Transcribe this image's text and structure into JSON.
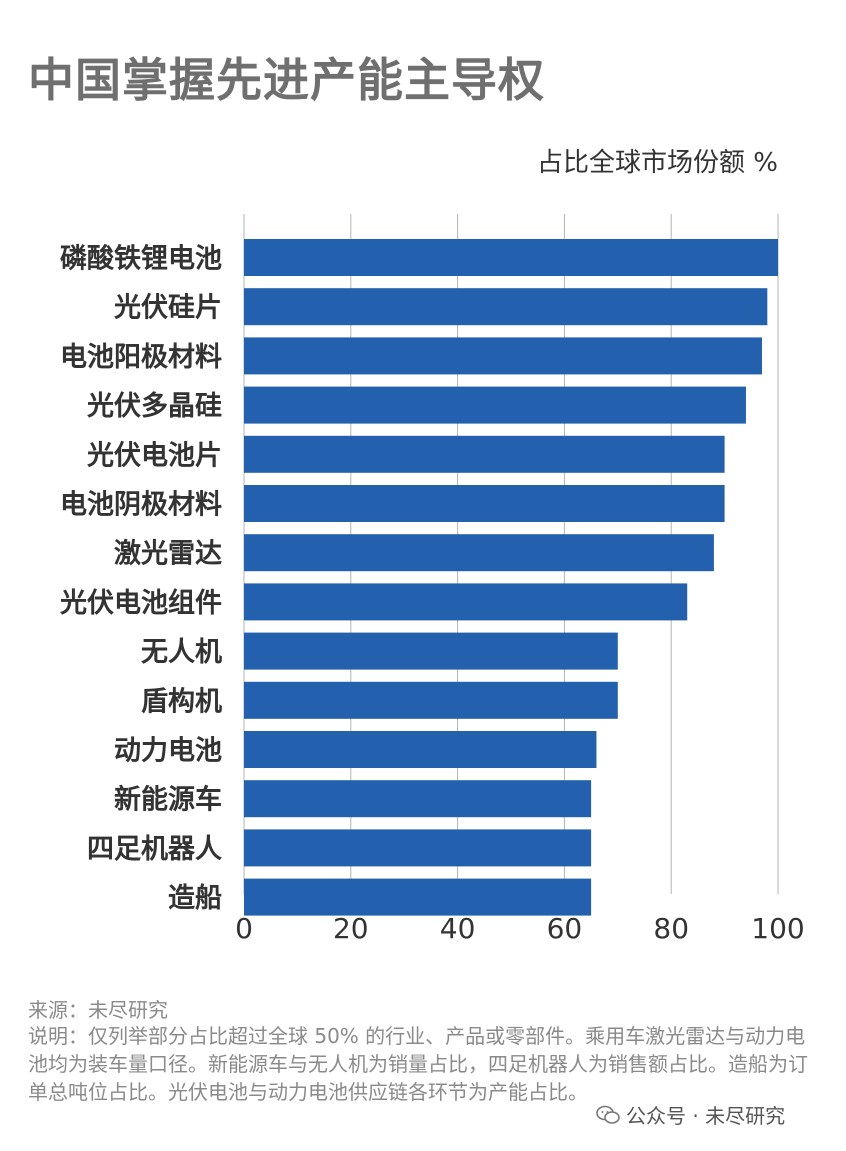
{
  "title": "中国掌握先进产能主导权",
  "unit_label": "占比全球市场份额 %",
  "chart_data": {
    "type": "bar",
    "orientation": "horizontal",
    "categories": [
      "磷酸铁锂电池",
      "光伏硅片",
      "电池阳极材料",
      "光伏多晶硅",
      "光伏电池片",
      "电池阴极材料",
      "激光雷达",
      "光伏电池组件",
      "无人机",
      "盾构机",
      "动力电池",
      "新能源车",
      "四足机器人",
      "造船"
    ],
    "values": [
      100,
      98,
      97,
      94,
      90,
      90,
      88,
      83,
      70,
      70,
      66,
      65,
      65,
      65
    ],
    "xlim": [
      0,
      100
    ],
    "xticks": [
      0,
      20,
      40,
      60,
      80,
      100
    ],
    "grid": true,
    "bar_color": "#2360ad",
    "grid_color": "#b3b3b3"
  },
  "footer": {
    "source": "来源：未尽研究",
    "note": "说明：仅列举部分占比超过全球 50% 的行业、产品或零部件。乘用车激光雷达与动力电池均为装车量口径。新能源车与无人机为销量占比，四足机器人为销售额占比。造船为订单总吨位占比。光伏电池与动力电池供应链各环节为产能占比。",
    "watermark": "公众号 · 未尽研究"
  }
}
